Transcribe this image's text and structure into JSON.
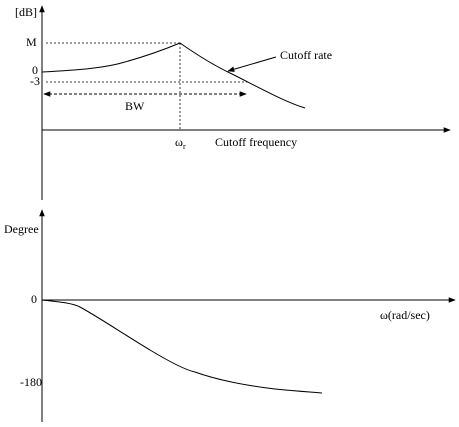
{
  "magnitude_plot": {
    "y_label": "[dB]",
    "peak_label": "M",
    "zero_label": "0",
    "minus3_label": "-3",
    "bandwidth_label": "BW",
    "cutoff_rate_label": "Cutoff rate",
    "resonant_frequency_symbol": "ω",
    "resonant_frequency_subscript": "r",
    "cutoff_frequency_label": "Cutoff frequency"
  },
  "phase_plot": {
    "y_label": "Degree",
    "zero_label": "0",
    "minus180_label": "-180",
    "x_label": "ω(rad/sec)"
  }
}
